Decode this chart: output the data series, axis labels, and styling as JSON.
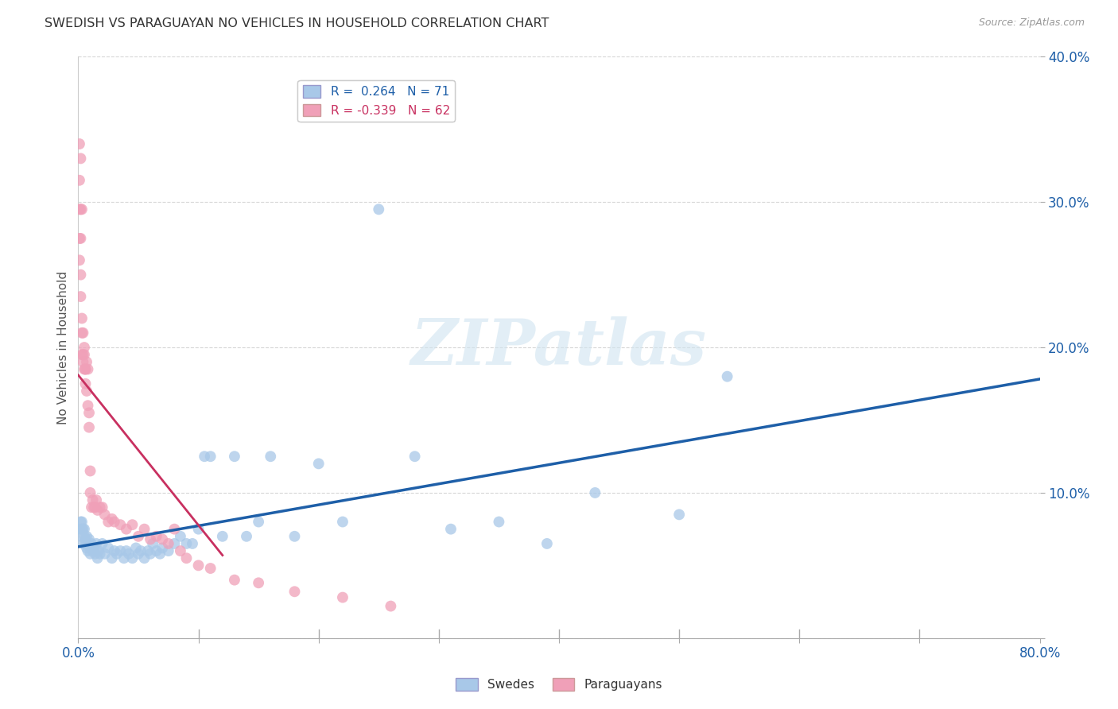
{
  "title": "SWEDISH VS PARAGUAYAN NO VEHICLES IN HOUSEHOLD CORRELATION CHART",
  "source": "Source: ZipAtlas.com",
  "ylabel": "No Vehicles in Household",
  "xlim": [
    0.0,
    0.8
  ],
  "ylim": [
    0.0,
    0.4
  ],
  "xticks": [
    0.0,
    0.1,
    0.2,
    0.3,
    0.4,
    0.5,
    0.6,
    0.7,
    0.8
  ],
  "xticklabels_show": [
    "0.0%",
    "",
    "",
    "",
    "",
    "",
    "",
    "",
    "80.0%"
  ],
  "yticks": [
    0.0,
    0.1,
    0.2,
    0.3,
    0.4
  ],
  "yticklabels": [
    "",
    "10.0%",
    "20.0%",
    "30.0%",
    "40.0%"
  ],
  "blue_color": "#A8C8E8",
  "pink_color": "#F0A0B8",
  "blue_line_color": "#1E5FA8",
  "pink_line_color": "#C83060",
  "legend1_text": "R =  0.264   N = 71",
  "legend2_text": "R = -0.339   N = 62",
  "watermark": "ZIPatlas",
  "blue_R": 0.264,
  "blue_N": 71,
  "pink_R": -0.339,
  "pink_N": 62,
  "swedes_x": [
    0.001,
    0.002,
    0.002,
    0.003,
    0.003,
    0.004,
    0.004,
    0.005,
    0.005,
    0.006,
    0.006,
    0.007,
    0.007,
    0.008,
    0.008,
    0.009,
    0.01,
    0.01,
    0.011,
    0.012,
    0.013,
    0.014,
    0.015,
    0.016,
    0.017,
    0.018,
    0.02,
    0.022,
    0.025,
    0.028,
    0.03,
    0.032,
    0.035,
    0.038,
    0.04,
    0.042,
    0.045,
    0.048,
    0.05,
    0.052,
    0.055,
    0.058,
    0.06,
    0.062,
    0.065,
    0.068,
    0.07,
    0.075,
    0.08,
    0.085,
    0.09,
    0.095,
    0.1,
    0.105,
    0.11,
    0.12,
    0.13,
    0.14,
    0.15,
    0.16,
    0.18,
    0.2,
    0.22,
    0.25,
    0.28,
    0.31,
    0.35,
    0.39,
    0.43,
    0.5,
    0.54
  ],
  "swedes_y": [
    0.075,
    0.08,
    0.07,
    0.075,
    0.08,
    0.065,
    0.075,
    0.07,
    0.075,
    0.065,
    0.068,
    0.062,
    0.07,
    0.065,
    0.06,
    0.068,
    0.062,
    0.058,
    0.065,
    0.06,
    0.062,
    0.058,
    0.065,
    0.055,
    0.06,
    0.058,
    0.065,
    0.058,
    0.062,
    0.055,
    0.06,
    0.058,
    0.06,
    0.055,
    0.06,
    0.058,
    0.055,
    0.062,
    0.058,
    0.06,
    0.055,
    0.06,
    0.058,
    0.065,
    0.06,
    0.058,
    0.062,
    0.06,
    0.065,
    0.07,
    0.065,
    0.065,
    0.075,
    0.125,
    0.125,
    0.07,
    0.125,
    0.07,
    0.08,
    0.125,
    0.07,
    0.12,
    0.08,
    0.295,
    0.125,
    0.075,
    0.08,
    0.065,
    0.1,
    0.085,
    0.18
  ],
  "paraguayans_x": [
    0.001,
    0.001,
    0.001,
    0.001,
    0.001,
    0.002,
    0.002,
    0.002,
    0.002,
    0.002,
    0.003,
    0.003,
    0.003,
    0.003,
    0.004,
    0.004,
    0.004,
    0.005,
    0.005,
    0.005,
    0.006,
    0.006,
    0.006,
    0.007,
    0.007,
    0.008,
    0.008,
    0.009,
    0.009,
    0.01,
    0.01,
    0.011,
    0.012,
    0.013,
    0.014,
    0.015,
    0.016,
    0.018,
    0.02,
    0.022,
    0.025,
    0.028,
    0.03,
    0.035,
    0.04,
    0.045,
    0.05,
    0.055,
    0.06,
    0.065,
    0.07,
    0.075,
    0.08,
    0.085,
    0.09,
    0.1,
    0.11,
    0.13,
    0.15,
    0.18,
    0.22,
    0.26
  ],
  "paraguayans_y": [
    0.34,
    0.315,
    0.295,
    0.275,
    0.26,
    0.33,
    0.295,
    0.275,
    0.25,
    0.235,
    0.22,
    0.295,
    0.21,
    0.195,
    0.21,
    0.19,
    0.195,
    0.2,
    0.185,
    0.195,
    0.185,
    0.175,
    0.185,
    0.17,
    0.19,
    0.16,
    0.185,
    0.145,
    0.155,
    0.1,
    0.115,
    0.09,
    0.095,
    0.09,
    0.09,
    0.095,
    0.088,
    0.09,
    0.09,
    0.085,
    0.08,
    0.082,
    0.08,
    0.078,
    0.075,
    0.078,
    0.07,
    0.075,
    0.068,
    0.07,
    0.068,
    0.065,
    0.075,
    0.06,
    0.055,
    0.05,
    0.048,
    0.04,
    0.038,
    0.032,
    0.028,
    0.022
  ]
}
